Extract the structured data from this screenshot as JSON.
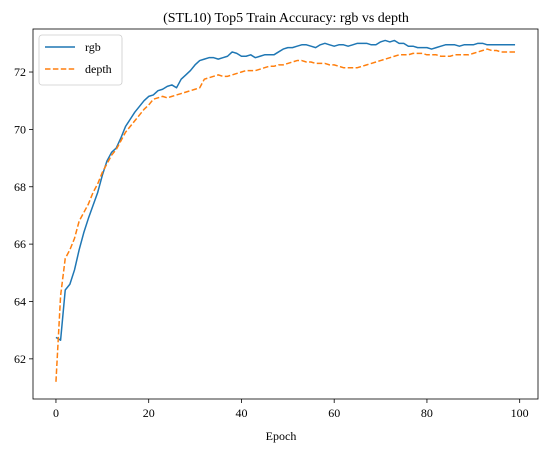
{
  "chart_data": {
    "type": "line",
    "title": "(STL10) Top5 Train Accuracy: rgb vs depth",
    "xlabel": "Epoch",
    "ylabel": "",
    "xlim": [
      -4.95,
      103.95
    ],
    "ylim": [
      60.6,
      73.5
    ],
    "xticks": [
      0,
      20,
      40,
      60,
      80,
      100
    ],
    "yticks": [
      62,
      64,
      66,
      68,
      70,
      72
    ],
    "grid": false,
    "legend_position": "top-left",
    "x": [
      0,
      1,
      2,
      3,
      4,
      5,
      6,
      7,
      8,
      9,
      10,
      11,
      12,
      13,
      14,
      15,
      16,
      17,
      18,
      19,
      20,
      21,
      22,
      23,
      24,
      25,
      26,
      27,
      28,
      29,
      30,
      31,
      32,
      33,
      34,
      35,
      36,
      37,
      38,
      39,
      40,
      41,
      42,
      43,
      44,
      45,
      46,
      47,
      48,
      49,
      50,
      51,
      52,
      53,
      54,
      55,
      56,
      57,
      58,
      59,
      60,
      61,
      62,
      63,
      64,
      65,
      66,
      67,
      68,
      69,
      70,
      71,
      72,
      73,
      74,
      75,
      76,
      77,
      78,
      79,
      80,
      81,
      82,
      83,
      84,
      85,
      86,
      87,
      88,
      89,
      90,
      91,
      92,
      93,
      94,
      95,
      96,
      97,
      98,
      99
    ],
    "series": [
      {
        "name": "rgb",
        "color": "#1f77b4",
        "style": "solid",
        "values": [
          62.75,
          62.65,
          64.4,
          64.6,
          65.1,
          65.8,
          66.4,
          66.9,
          67.35,
          67.8,
          68.4,
          68.9,
          69.2,
          69.35,
          69.7,
          70.1,
          70.35,
          70.6,
          70.8,
          71.0,
          71.15,
          71.2,
          71.35,
          71.4,
          71.5,
          71.55,
          71.45,
          71.75,
          71.9,
          72.05,
          72.25,
          72.4,
          72.45,
          72.5,
          72.5,
          72.45,
          72.5,
          72.55,
          72.7,
          72.65,
          72.55,
          72.55,
          72.6,
          72.5,
          72.55,
          72.6,
          72.6,
          72.6,
          72.7,
          72.8,
          72.85,
          72.85,
          72.9,
          72.95,
          72.95,
          72.9,
          72.85,
          72.95,
          73.0,
          72.95,
          72.9,
          72.95,
          72.95,
          72.9,
          72.95,
          73.0,
          73.0,
          73.0,
          72.95,
          72.95,
          73.05,
          73.1,
          73.05,
          73.1,
          73.0,
          73.0,
          72.9,
          72.9,
          72.85,
          72.85,
          72.85,
          72.8,
          72.85,
          72.9,
          72.95,
          72.95,
          72.95,
          72.9,
          72.95,
          72.95,
          72.95,
          73.0,
          73.0,
          72.95,
          72.95,
          72.95,
          72.95,
          72.95,
          72.95,
          72.95
        ]
      },
      {
        "name": "depth",
        "color": "#ff7f0e",
        "style": "dashed",
        "values": [
          61.2,
          64.2,
          65.5,
          65.8,
          66.2,
          66.8,
          67.1,
          67.4,
          67.8,
          68.1,
          68.5,
          68.8,
          69.1,
          69.3,
          69.6,
          69.9,
          70.1,
          70.3,
          70.5,
          70.7,
          70.85,
          71.05,
          71.1,
          71.15,
          71.1,
          71.15,
          71.2,
          71.25,
          71.3,
          71.35,
          71.4,
          71.45,
          71.75,
          71.8,
          71.85,
          71.9,
          71.85,
          71.85,
          71.9,
          71.95,
          72.0,
          72.05,
          72.05,
          72.05,
          72.1,
          72.15,
          72.2,
          72.2,
          72.25,
          72.25,
          72.3,
          72.35,
          72.4,
          72.4,
          72.35,
          72.35,
          72.3,
          72.3,
          72.3,
          72.25,
          72.25,
          72.2,
          72.15,
          72.15,
          72.15,
          72.15,
          72.2,
          72.25,
          72.3,
          72.35,
          72.4,
          72.45,
          72.5,
          72.55,
          72.6,
          72.6,
          72.6,
          72.65,
          72.65,
          72.65,
          72.6,
          72.6,
          72.6,
          72.55,
          72.55,
          72.55,
          72.6,
          72.6,
          72.6,
          72.6,
          72.65,
          72.7,
          72.75,
          72.8,
          72.75,
          72.75,
          72.7,
          72.7,
          72.7,
          72.7
        ]
      }
    ]
  }
}
